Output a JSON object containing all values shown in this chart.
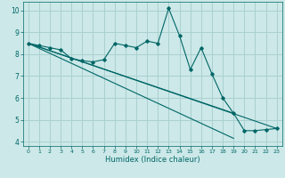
{
  "xlabel": "Humidex (Indice chaleur)",
  "bg_color": "#cce8e8",
  "grid_color": "#aad0d0",
  "line_color": "#006666",
  "xlim": [
    -0.5,
    23.5
  ],
  "ylim": [
    3.8,
    10.4
  ],
  "yticks": [
    4,
    5,
    6,
    7,
    8,
    9,
    10
  ],
  "xticks": [
    0,
    1,
    2,
    3,
    4,
    5,
    6,
    7,
    8,
    9,
    10,
    11,
    12,
    13,
    14,
    15,
    16,
    17,
    18,
    19,
    20,
    21,
    22,
    23
  ],
  "data_x": [
    0,
    1,
    2,
    3,
    4,
    5,
    6,
    7,
    8,
    9,
    10,
    11,
    12,
    13,
    14,
    15,
    16,
    17,
    18,
    19,
    20,
    21,
    22,
    23
  ],
  "data_y": [
    8.5,
    8.4,
    8.3,
    8.2,
    7.8,
    7.7,
    7.65,
    7.75,
    8.5,
    8.4,
    8.3,
    8.6,
    8.5,
    10.1,
    8.85,
    7.3,
    8.3,
    7.1,
    6.0,
    5.3,
    4.5,
    4.5,
    4.55,
    4.6
  ],
  "trend1_x": [
    0,
    23
  ],
  "trend1_y": [
    8.5,
    4.6
  ],
  "trend2_x": [
    0,
    19
  ],
  "trend2_y": [
    8.5,
    5.3
  ],
  "trend3_x": [
    0,
    19
  ],
  "trend3_y": [
    8.5,
    4.15
  ]
}
